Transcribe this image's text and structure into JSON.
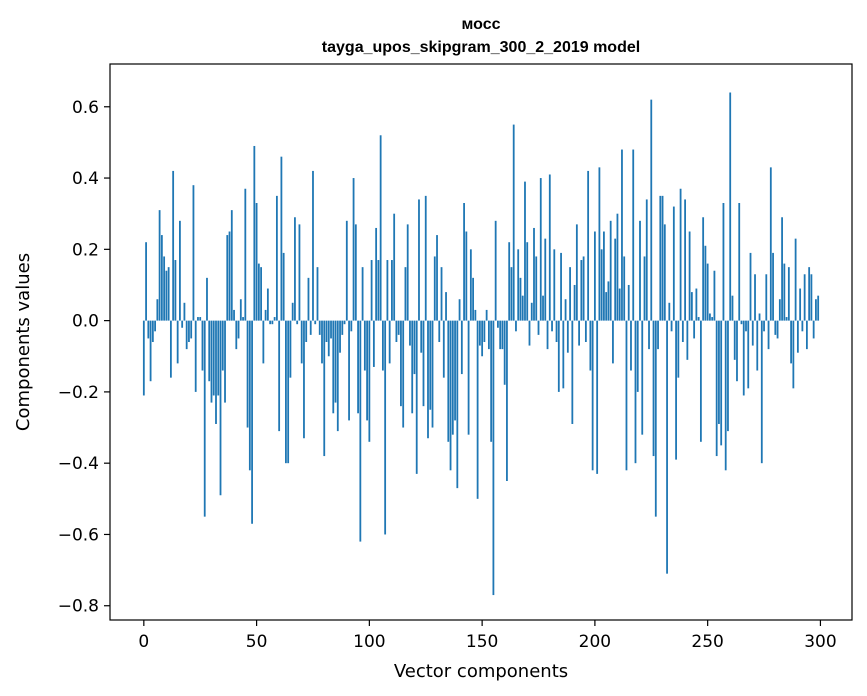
{
  "chart_data": {
    "type": "bar",
    "title_line1": "мосс",
    "title_line2": "tayga_upos_skipgram_300_2_2019 model",
    "xlabel": "Vector components",
    "ylabel": "Components values",
    "xlim": [
      -15,
      314
    ],
    "ylim": [
      -0.84,
      0.72
    ],
    "xticks": [
      0,
      50,
      100,
      150,
      200,
      250,
      300
    ],
    "yticks": [
      0.6,
      0.4,
      0.2,
      0.0,
      -0.2,
      -0.4,
      -0.6,
      -0.8
    ],
    "ytick_labels": [
      "0.6",
      "0.4",
      "0.2",
      "0.0",
      "−0.2",
      "−0.4",
      "−0.6",
      "−0.8"
    ],
    "bar_color": "#1f77b4",
    "grid": false,
    "values": [
      -0.21,
      0.22,
      -0.05,
      -0.17,
      -0.06,
      -0.03,
      0.06,
      0.31,
      0.24,
      0.18,
      0.14,
      0.15,
      -0.16,
      0.42,
      0.17,
      -0.12,
      0.28,
      -0.02,
      0.05,
      -0.08,
      -0.06,
      -0.05,
      0.38,
      -0.2,
      0.01,
      0.01,
      -0.14,
      -0.55,
      0.12,
      -0.17,
      -0.23,
      -0.21,
      -0.29,
      -0.21,
      -0.49,
      -0.14,
      -0.23,
      0.24,
      0.25,
      0.31,
      0.03,
      -0.08,
      -0.05,
      0.06,
      0.01,
      0.37,
      -0.3,
      -0.42,
      -0.57,
      0.49,
      0.33,
      0.16,
      0.15,
      -0.12,
      0.03,
      0.09,
      -0.01,
      -0.01,
      0.01,
      0.35,
      -0.31,
      0.46,
      0.19,
      -0.4,
      -0.4,
      -0.16,
      0.05,
      0.29,
      -0.01,
      0.27,
      -0.12,
      -0.33,
      -0.06,
      0.12,
      -0.04,
      0.42,
      -0.01,
      0.15,
      -0.04,
      -0.12,
      -0.38,
      -0.06,
      -0.1,
      -0.05,
      -0.26,
      -0.23,
      -0.31,
      -0.09,
      -0.04,
      -0.01,
      0.28,
      -0.28,
      -0.03,
      0.4,
      0.27,
      -0.26,
      -0.62,
      0.15,
      -0.14,
      -0.28,
      -0.34,
      0.17,
      -0.13,
      0.26,
      0.17,
      0.52,
      -0.14,
      -0.6,
      0.17,
      -0.12,
      0.17,
      0.3,
      -0.06,
      -0.04,
      -0.24,
      -0.3,
      0.15,
      0.27,
      -0.07,
      -0.26,
      -0.15,
      -0.43,
      0.34,
      -0.09,
      -0.24,
      0.35,
      -0.33,
      -0.25,
      -0.3,
      0.18,
      0.24,
      -0.06,
      0.15,
      -0.16,
      0.08,
      -0.34,
      -0.42,
      -0.32,
      -0.28,
      -0.47,
      0.06,
      -0.15,
      0.33,
      0.25,
      -0.32,
      0.2,
      0.12,
      0.03,
      -0.5,
      -0.07,
      -0.1,
      -0.06,
      0.03,
      -0.08,
      -0.34,
      -0.77,
      0.28,
      -0.02,
      -0.08,
      -0.08,
      -0.18,
      -0.45,
      0.22,
      0.15,
      0.55,
      -0.03,
      0.2,
      0.12,
      0.07,
      0.39,
      0.22,
      -0.07,
      0.05,
      0.26,
      0.18,
      -0.04,
      0.4,
      0.07,
      0.23,
      -0.08,
      0.41,
      -0.03,
      0.2,
      -0.06,
      -0.2,
      0.19,
      -0.19,
      0.06,
      -0.09,
      0.15,
      -0.29,
      0.1,
      0.27,
      -0.07,
      0.17,
      0.18,
      -0.06,
      0.42,
      -0.14,
      -0.42,
      0.25,
      -0.43,
      0.43,
      0.2,
      0.25,
      0.08,
      0.11,
      0.28,
      -0.12,
      0.23,
      0.3,
      0.09,
      0.48,
      0.18,
      -0.42,
      0.1,
      -0.14,
      0.48,
      -0.4,
      -0.2,
      0.28,
      -0.32,
      0.18,
      0.34,
      -0.08,
      0.62,
      -0.38,
      -0.55,
      -0.08,
      0.35,
      0.35,
      0.27,
      -0.71,
      0.05,
      -0.03,
      0.32,
      -0.39,
      -0.16,
      0.37,
      -0.06,
      0.34,
      -0.11,
      0.25,
      0.08,
      -0.05,
      0.09,
      0.01,
      -0.34,
      0.29,
      0.21,
      0.16,
      0.02,
      0.01,
      0.14,
      -0.38,
      -0.29,
      -0.35,
      0.33,
      -0.42,
      -0.31,
      0.64,
      0.07,
      -0.11,
      -0.17,
      0.33,
      -0.01,
      -0.21,
      -0.03,
      -0.19,
      0.19,
      -0.07,
      0.13,
      -0.14,
      0.02,
      -0.4,
      -0.03,
      0.13,
      -0.08,
      0.43,
      0.19,
      -0.04,
      -0.05,
      0.06,
      0.29,
      0.16,
      0.01,
      0.15,
      -0.12,
      -0.19,
      0.23,
      -0.09,
      0.09,
      -0.03,
      0.13,
      -0.08,
      0.15,
      0.13,
      -0.05,
      0.06,
      0.07
    ]
  }
}
